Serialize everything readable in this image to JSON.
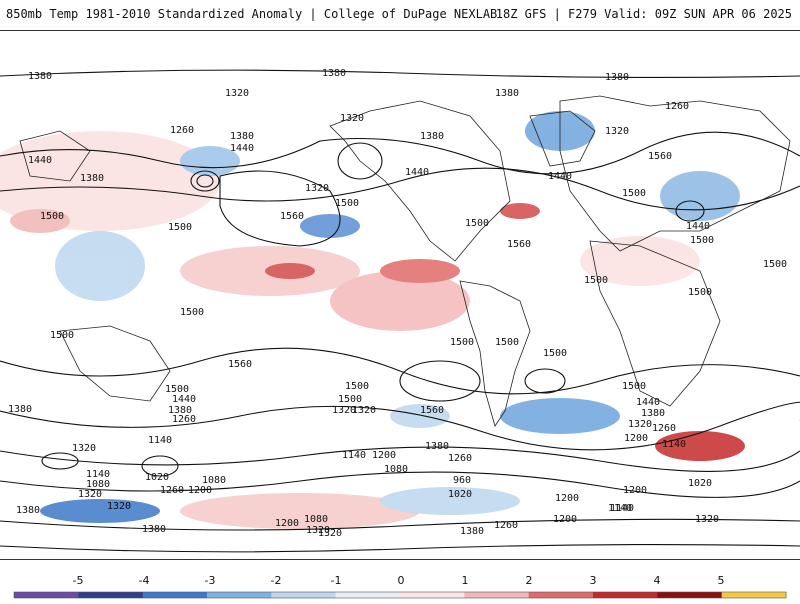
{
  "header": {
    "title_left": "850mb Temp 1981-2010 Standardized Anomaly | College of DuPage NEXLAB",
    "title_right": "18Z GFS | F279 Valid: 09Z SUN APR 06 2025"
  },
  "contour_labels": [
    "1380",
    "1380",
    "1380",
    "1320",
    "1320",
    "1260",
    "1260",
    "1380",
    "1440",
    "1380",
    "1380",
    "1320",
    "1440",
    "1380",
    "1440",
    "1320",
    "1560",
    "1500",
    "1500",
    "1500",
    "1440",
    "1500",
    "1560",
    "1560",
    "1500",
    "1440",
    "1500",
    "1500",
    "1500",
    "1500",
    "1500",
    "1500",
    "1560",
    "1500",
    "1500",
    "1500",
    "1500",
    "1500",
    "1500",
    "1380",
    "1440",
    "1500",
    "1380",
    "1320",
    "1260",
    "1320",
    "1560",
    "1440",
    "1380",
    "1320",
    "1260",
    "1200",
    "1140",
    "1380",
    "1320",
    "1140",
    "1140",
    "1080",
    "1200",
    "1200",
    "1140",
    "1320",
    "1260",
    "1200",
    "1080",
    "1020",
    "960",
    "1020",
    "1260",
    "1080",
    "1020",
    "1140",
    "1320",
    "1080",
    "1380",
    "1320",
    "1200",
    "1320",
    "1380",
    "1380",
    "1200",
    "1260",
    "1140",
    "1200",
    "1320"
  ],
  "colorbar": {
    "ticks": [
      "-5",
      "-4",
      "-3",
      "-2",
      "-1",
      "0",
      "1",
      "2",
      "3",
      "4",
      "5"
    ],
    "colors": [
      "#6b4aa8",
      "#2d3e8c",
      "#3d78c8",
      "#7fb2e2",
      "#bdd7ee",
      "#e9eef6",
      "#fbe5e5",
      "#f2b6b6",
      "#e06a6a",
      "#c52a2a",
      "#8a0f0f",
      "#f5c842"
    ]
  }
}
